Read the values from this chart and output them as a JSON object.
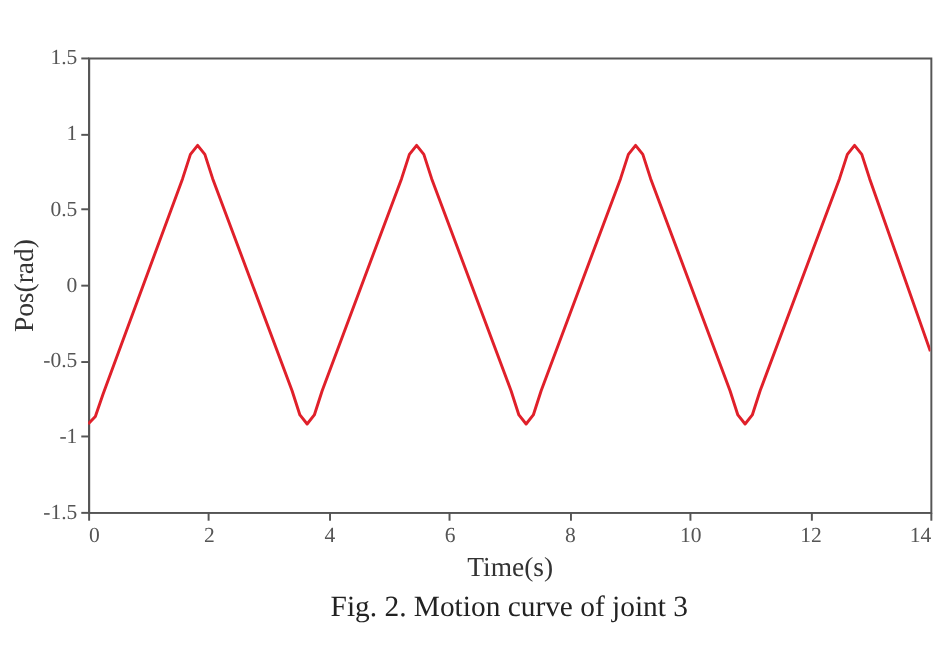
{
  "chart_data": {
    "type": "line",
    "xlabel": "Time(s)",
    "ylabel": "Pos(rad)",
    "annotations": [
      "Fig. 2. Motion curve of joint 3"
    ],
    "x": [
      0,
      0.12,
      0.25,
      1.57,
      1.7,
      1.82,
      1.94,
      2.07,
      3.39,
      3.52,
      3.64,
      3.76,
      3.89,
      5.21,
      5.34,
      5.46,
      5.58,
      5.71,
      7.03,
      7.16,
      7.28,
      7.4,
      7.53,
      8.85,
      8.98,
      9.1,
      9.22,
      9.35,
      10.67,
      10.8,
      10.92,
      11.04,
      11.17,
      12.49,
      12.62,
      12.74,
      12.86,
      12.99,
      14
    ],
    "series": [
      {
        "color": "#e0202a",
        "values": [
          -0.92,
          -0.87,
          -0.72,
          0.7,
          0.86,
          0.92,
          0.86,
          0.7,
          -0.7,
          -0.86,
          -0.92,
          -0.86,
          -0.7,
          0.7,
          0.86,
          0.92,
          0.86,
          0.7,
          -0.7,
          -0.86,
          -0.92,
          -0.86,
          -0.7,
          0.7,
          0.86,
          0.92,
          0.86,
          0.7,
          -0.7,
          -0.86,
          -0.92,
          -0.86,
          -0.7,
          0.7,
          0.86,
          0.92,
          0.86,
          0.7,
          -0.44
        ]
      }
    ],
    "xlim": [
      0,
      14
    ],
    "xticks": [
      0,
      2,
      4,
      6,
      8,
      10,
      12,
      14
    ],
    "ylim": [
      -1.5,
      1.5
    ],
    "yticks": [
      -1.5,
      -1,
      -0.5,
      0,
      0.5,
      1,
      1.5
    ],
    "grid": false,
    "legend": false,
    "marker": "none",
    "line_style": "solid"
  }
}
